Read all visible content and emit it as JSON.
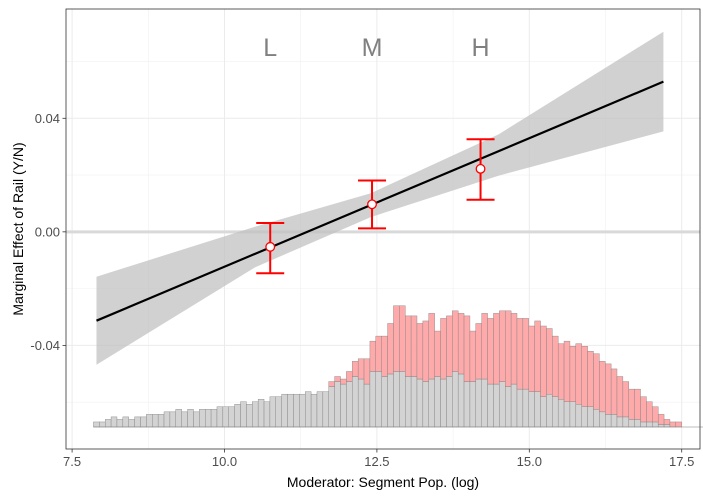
{
  "chart_data": {
    "type": "line",
    "xlabel": "Moderator: Segment Pop. (log)",
    "ylabel": "Marginal Effect of Rail (Y/N)",
    "xlim": [
      7.4,
      17.8
    ],
    "ylim": [
      -0.0765,
      0.0785
    ],
    "xticks": [
      7.5,
      10.0,
      12.5,
      15.0,
      17.5
    ],
    "xtick_labels": [
      "7.5",
      "10.0",
      "12.5",
      "15.0",
      "17.5"
    ],
    "yticks": [
      -0.04,
      0.0,
      0.04
    ],
    "ytick_labels": [
      "-0.04",
      "0.00",
      "0.04"
    ],
    "grid": true,
    "reference_line": 0.0,
    "colors": {
      "line": "#000000",
      "band": "#bfbfbf",
      "errorbar": "#ff0000",
      "hist_treated": "#ffaaaa",
      "hist_control": "#d3d3d3",
      "ref": "#d9d9d9"
    },
    "series": [
      {
        "type": "line",
        "x": [
          7.9,
          17.2
        ],
        "y": [
          -0.0313,
          0.0529
        ]
      },
      {
        "type": "band",
        "x": [
          7.9,
          10.5,
          12.4,
          14.5,
          17.2
        ],
        "lower": [
          -0.0468,
          -0.0125,
          0.0052,
          0.0198,
          0.0354
        ],
        "upper": [
          -0.0158,
          0.0018,
          0.0136,
          0.0344,
          0.0705
        ]
      }
    ],
    "bins": [
      {
        "label": "L",
        "x": 10.75,
        "estimate": -0.0053,
        "lower": -0.0146,
        "upper": 0.0031
      },
      {
        "label": "M",
        "x": 12.42,
        "estimate": 0.0097,
        "lower": 0.0012,
        "upper": 0.0181
      },
      {
        "label": "H",
        "x": 14.2,
        "estimate": 0.0222,
        "lower": 0.0113,
        "upper": 0.0326
      }
    ],
    "histogram": {
      "x_start": 7.85,
      "bin_width": 0.0965,
      "control": [
        1,
        1,
        1.5,
        2,
        1.5,
        2,
        1.5,
        2,
        2,
        2.5,
        2.5,
        2.5,
        3,
        3,
        3.5,
        3,
        3.5,
        3,
        3.5,
        3.5,
        3.5,
        4,
        4,
        4,
        4.5,
        5,
        4.5,
        5,
        5.5,
        5,
        6,
        6,
        6.5,
        6.5,
        6.5,
        6.5,
        7,
        6.5,
        7,
        7,
        8,
        9,
        8.5,
        9,
        10,
        9.5,
        8.5,
        11,
        11,
        10,
        10.5,
        11,
        11,
        10,
        10,
        9.5,
        9,
        9.5,
        10,
        9.5,
        10,
        11,
        10.5,
        9,
        9,
        9.5,
        9.5,
        8.5,
        8.5,
        9,
        8,
        8.5,
        7.5,
        7.5,
        7,
        7,
        6,
        6.5,
        6,
        5.5,
        5,
        5,
        4.5,
        4,
        4,
        3.5,
        3,
        2.5,
        2.5,
        2,
        2,
        1.5,
        1.5,
        1,
        1,
        1,
        0.5,
        0.5
      ],
      "treated": [
        0,
        0,
        0,
        0,
        0,
        0,
        0,
        0,
        0,
        0,
        0,
        0,
        0,
        0,
        0,
        0,
        0,
        0,
        0,
        0,
        0,
        0,
        0,
        0,
        0,
        0,
        0,
        0,
        0,
        0,
        0,
        0,
        0,
        0,
        0,
        0,
        0,
        0,
        0,
        0,
        1,
        1,
        1,
        2,
        3,
        4,
        5,
        6,
        7,
        8,
        10,
        13,
        13,
        12,
        12,
        11,
        12,
        13,
        9,
        12,
        12,
        12,
        12,
        13,
        10,
        11,
        13,
        13,
        14,
        14,
        15,
        14,
        14,
        14,
        13,
        14,
        14,
        13,
        12,
        11,
        12,
        11,
        12,
        12,
        11,
        11,
        10,
        10,
        9,
        8,
        7,
        6,
        6,
        5,
        4,
        3,
        2,
        1,
        1,
        1,
        0,
        0,
        0,
        0,
        0,
        0,
        0,
        0,
        0,
        0,
        0,
        0,
        0,
        0,
        0,
        0,
        0,
        0,
        0,
        0,
        0,
        0,
        0,
        1,
        1,
        0,
        0,
        0,
        0,
        0
      ]
    }
  }
}
